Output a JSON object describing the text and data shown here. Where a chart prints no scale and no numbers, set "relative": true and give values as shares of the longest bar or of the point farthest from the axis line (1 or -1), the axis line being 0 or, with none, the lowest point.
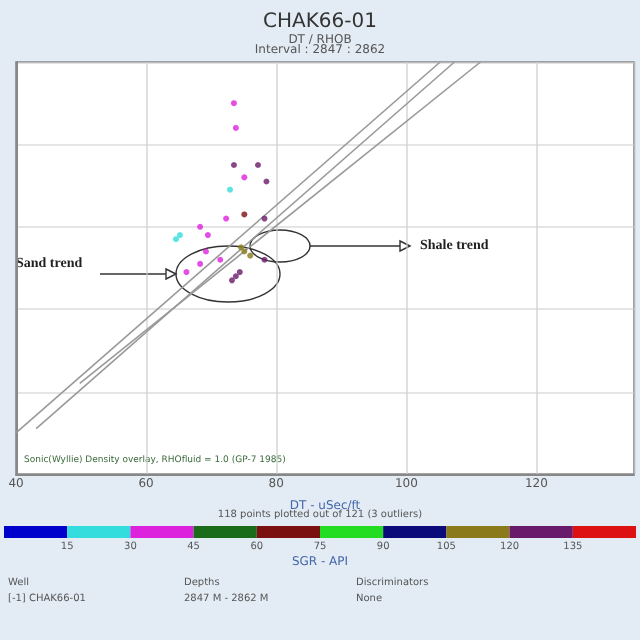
{
  "chart_data": {
    "type": "scatter",
    "title": "CHAK66-01",
    "subtitle": "DT / RHOB",
    "xlabel": "DT - uSec/ft",
    "clabel": "SGR - API",
    "relative": true,
    "xlim": [
      40,
      135
    ],
    "xticks": [
      40,
      60,
      80,
      100,
      120
    ],
    "clim": [
      0,
      150
    ],
    "cticks": [
      15,
      30,
      45,
      60,
      75,
      90,
      105,
      120,
      135
    ],
    "colors": [
      "#0000cc",
      "#33dddd",
      "#dd22dd",
      "#1a6b1a",
      "#7a1010",
      "#22dd22",
      "#0a0a7a",
      "#8a7a1a",
      "#6a1a6a",
      "#dd1111"
    ],
    "grid": true,
    "marker": "circle",
    "series": [
      {
        "type": "scatter",
        "x": [
          73.5,
          73.8,
          73.5,
          77.2,
          75.1,
          78.5,
          72.9,
          64.6,
          65.2,
          68.3,
          69.5,
          72.3,
          75.1,
          78.2,
          75.1,
          76.0,
          74.6,
          69.2,
          71.4,
          68.3,
          73.8,
          73.2,
          74.4,
          66.2,
          78.2
        ],
        "values": [
          0.9,
          0.84,
          0.75,
          0.75,
          0.72,
          0.71,
          0.69,
          0.57,
          0.58,
          0.6,
          0.58,
          0.62,
          0.63,
          0.62,
          0.54,
          0.53,
          0.55,
          0.54,
          0.52,
          0.51,
          0.48,
          0.47,
          0.49,
          0.49,
          0.52
        ],
        "colors": [
          "#dd22dd",
          "#dd22dd",
          "#6a1a6a",
          "#6a1a6a",
          "#dd22dd",
          "#6a1a6a",
          "#33dddd",
          "#33dddd",
          "#33dddd",
          "#dd22dd",
          "#dd22dd",
          "#dd22dd",
          "#7a1010",
          "#6a1a6a",
          "#8a7a1a",
          "#8a7a1a",
          "#8a7a1a",
          "#dd22dd",
          "#dd22dd",
          "#dd22dd",
          "#6a1a6a",
          "#6a1a6a",
          "#6a1a6a",
          "#dd22dd",
          "#6a1a6a"
        ]
      },
      {
        "type": "line",
        "marker": "none",
        "color": "#999999",
        "x": [
          40,
          105.2
        ],
        "values": [
          0.1,
          1
        ]
      },
      {
        "type": "line",
        "marker": "none",
        "color": "#999999",
        "x": [
          43.1,
          107.4
        ],
        "values": [
          0.11,
          1
        ]
      },
      {
        "type": "line",
        "marker": "none",
        "color": "#999999",
        "x": [
          49.8,
          111.4
        ],
        "values": [
          0.22,
          1
        ]
      }
    ],
    "annotations": [
      "Sand trend",
      "Shale trend",
      "Interval : 2847 : 2862",
      "Sonic(Wyllie) Density overlay, RHOfluid = 1.0 (GP-7 1985)",
      "118 points plotted out of 121 (3 outliers)",
      "Well",
      "[-1] CHAK66-01",
      "Depths",
      "2847 M - 2862 M",
      "Discriminators",
      "None"
    ]
  }
}
